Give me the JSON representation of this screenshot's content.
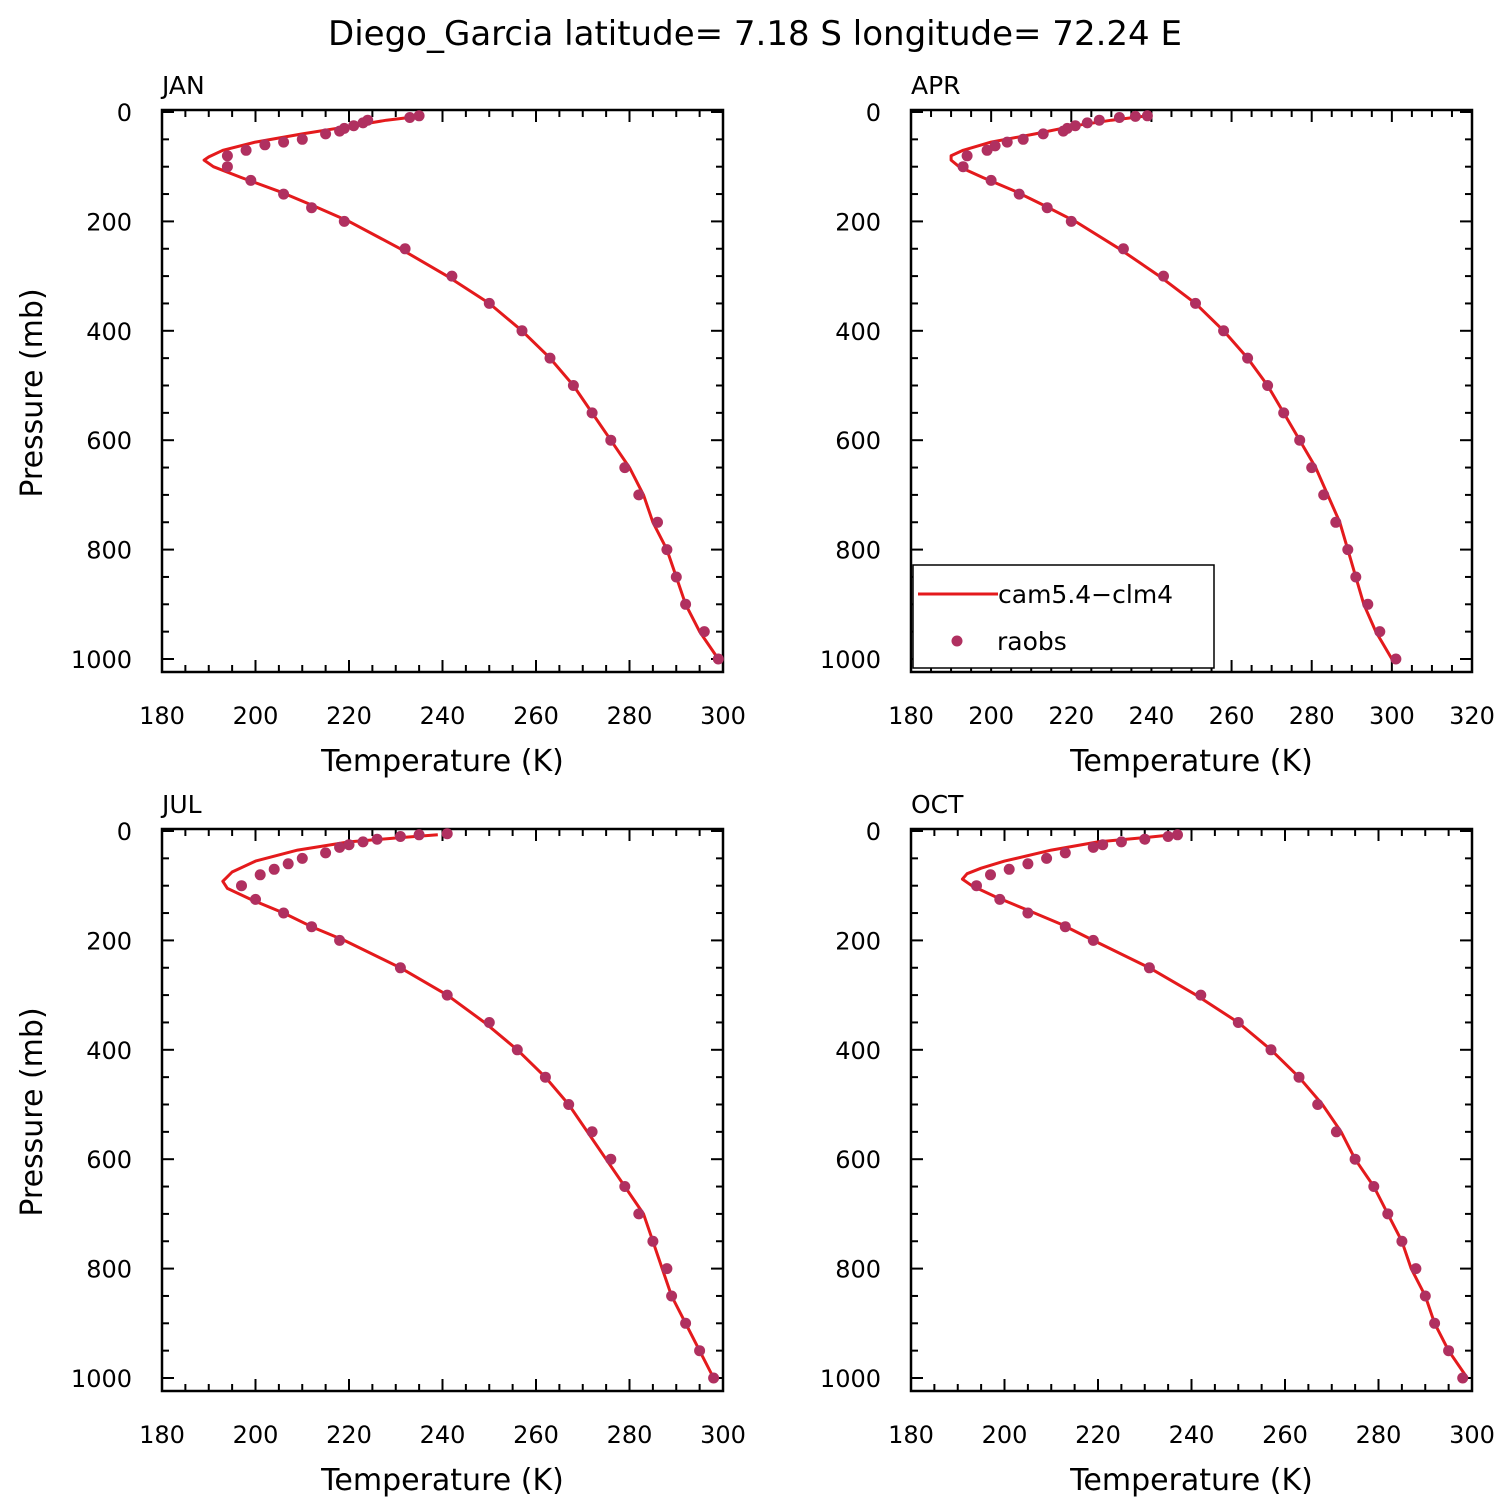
{
  "figure": {
    "title": "Diego_Garcia  latitude= 7.18 S longitude= 72.24 E"
  },
  "legend": {
    "model_label": "cam5.4−clm4",
    "obs_label": "raobs",
    "placement": "lower-left of APR panel"
  },
  "colors": {
    "model_line": "#e41a1c",
    "obs_marker": "#b03060",
    "axes": "#000000"
  },
  "chart_data": [
    {
      "type": "line",
      "panel": "JAN",
      "xlabel": "Temperature (K)",
      "ylabel": "Pressure (mb)",
      "xlim": [
        180,
        300
      ],
      "ylim": [
        0,
        1025
      ],
      "y_inverted": true,
      "xticks": [
        180,
        200,
        220,
        240,
        260,
        280,
        300
      ],
      "yticks": [
        0,
        200,
        400,
        600,
        800,
        1000
      ],
      "series": [
        {
          "name": "cam5.4−clm4",
          "kind": "line",
          "points": [
            [
              236,
              7
            ],
            [
              228,
              15
            ],
            [
              221,
              25
            ],
            [
              210,
              40
            ],
            [
              200,
              55
            ],
            [
              193,
              70
            ],
            [
              190,
              82
            ],
            [
              189,
              88
            ],
            [
              191,
              100
            ],
            [
              197,
              120
            ],
            [
              205,
              145
            ],
            [
              212,
              170
            ],
            [
              220,
              200
            ],
            [
              231,
              250
            ],
            [
              241,
              300
            ],
            [
              250,
              350
            ],
            [
              257,
              400
            ],
            [
              263,
              450
            ],
            [
              268,
              500
            ],
            [
              272,
              550
            ],
            [
              276,
              600
            ],
            [
              280,
              650
            ],
            [
              283,
              700
            ],
            [
              285,
              750
            ],
            [
              288,
              800
            ],
            [
              290,
              850
            ],
            [
              292,
              900
            ],
            [
              295,
              950
            ],
            [
              299,
              1000
            ]
          ]
        },
        {
          "name": "raobs",
          "kind": "scatter",
          "points": [
            [
              235,
              7
            ],
            [
              233,
              10
            ],
            [
              224,
              15
            ],
            [
              223,
              20
            ],
            [
              221,
              25
            ],
            [
              219,
              30
            ],
            [
              218,
              35
            ],
            [
              215,
              40
            ],
            [
              210,
              50
            ],
            [
              206,
              55
            ],
            [
              202,
              60
            ],
            [
              198,
              70
            ],
            [
              194,
              80
            ],
            [
              194,
              100
            ],
            [
              199,
              125
            ],
            [
              206,
              150
            ],
            [
              212,
              175
            ],
            [
              219,
              200
            ],
            [
              232,
              250
            ],
            [
              242,
              300
            ],
            [
              250,
              350
            ],
            [
              257,
              400
            ],
            [
              263,
              450
            ],
            [
              268,
              500
            ],
            [
              272,
              550
            ],
            [
              276,
              600
            ],
            [
              279,
              650
            ],
            [
              282,
              700
            ],
            [
              286,
              750
            ],
            [
              288,
              800
            ],
            [
              290,
              850
            ],
            [
              292,
              900
            ],
            [
              296,
              950
            ],
            [
              299,
              1000
            ]
          ]
        }
      ]
    },
    {
      "type": "line",
      "panel": "APR",
      "xlabel": "Temperature (K)",
      "ylabel": "",
      "xlim": [
        180,
        320
      ],
      "ylim": [
        0,
        1025
      ],
      "y_inverted": true,
      "xticks": [
        180,
        200,
        220,
        240,
        260,
        280,
        300,
        320
      ],
      "yticks": [
        0,
        200,
        400,
        600,
        800,
        1000
      ],
      "series": [
        {
          "name": "cam5.4−clm4",
          "kind": "line",
          "points": [
            [
              239,
              7
            ],
            [
              230,
              15
            ],
            [
              221,
              25
            ],
            [
              211,
              40
            ],
            [
              200,
              55
            ],
            [
              193,
              70
            ],
            [
              190,
              80
            ],
            [
              190,
              88
            ],
            [
              192,
              100
            ],
            [
              198,
              120
            ],
            [
              206,
              145
            ],
            [
              213,
              170
            ],
            [
              221,
              200
            ],
            [
              232,
              250
            ],
            [
              242,
              300
            ],
            [
              251,
              350
            ],
            [
              258,
              400
            ],
            [
              264,
              450
            ],
            [
              269,
              500
            ],
            [
              273,
              550
            ],
            [
              277,
              600
            ],
            [
              281,
              650
            ],
            [
              284,
              700
            ],
            [
              287,
              750
            ],
            [
              289,
              800
            ],
            [
              291,
              850
            ],
            [
              293,
              900
            ],
            [
              296,
              950
            ],
            [
              300,
              1000
            ]
          ]
        },
        {
          "name": "raobs",
          "kind": "scatter",
          "points": [
            [
              239,
              7
            ],
            [
              236,
              8
            ],
            [
              232,
              10
            ],
            [
              227,
              15
            ],
            [
              224,
              20
            ],
            [
              221,
              25
            ],
            [
              219,
              30
            ],
            [
              218,
              35
            ],
            [
              213,
              40
            ],
            [
              208,
              50
            ],
            [
              204,
              55
            ],
            [
              201,
              62
            ],
            [
              199,
              70
            ],
            [
              194,
              80
            ],
            [
              193,
              100
            ],
            [
              200,
              125
            ],
            [
              207,
              150
            ],
            [
              214,
              175
            ],
            [
              220,
              200
            ],
            [
              233,
              250
            ],
            [
              243,
              300
            ],
            [
              251,
              350
            ],
            [
              258,
              400
            ],
            [
              264,
              450
            ],
            [
              269,
              500
            ],
            [
              273,
              550
            ],
            [
              277,
              600
            ],
            [
              280,
              650
            ],
            [
              283,
              700
            ],
            [
              286,
              750
            ],
            [
              289,
              800
            ],
            [
              291,
              850
            ],
            [
              294,
              900
            ],
            [
              297,
              950
            ],
            [
              301,
              1000
            ]
          ]
        }
      ]
    },
    {
      "type": "line",
      "panel": "JUL",
      "xlabel": "Temperature (K)",
      "ylabel": "Pressure (mb)",
      "xlim": [
        180,
        300
      ],
      "ylim": [
        0,
        1025
      ],
      "y_inverted": true,
      "xticks": [
        180,
        200,
        220,
        240,
        260,
        280,
        300
      ],
      "yticks": [
        0,
        200,
        400,
        600,
        800,
        1000
      ],
      "series": [
        {
          "name": "cam5.4−clm4",
          "kind": "line",
          "points": [
            [
              239,
              7
            ],
            [
              231,
              12
            ],
            [
              220,
              20
            ],
            [
              209,
              35
            ],
            [
              200,
              55
            ],
            [
              195,
              75
            ],
            [
              193,
              92
            ],
            [
              194,
              105
            ],
            [
              199,
              125
            ],
            [
              206,
              150
            ],
            [
              212,
              175
            ],
            [
              219,
              200
            ],
            [
              231,
              250
            ],
            [
              241,
              300
            ],
            [
              249,
              350
            ],
            [
              256,
              400
            ],
            [
              262,
              450
            ],
            [
              267,
              500
            ],
            [
              271,
              550
            ],
            [
              275,
              600
            ],
            [
              279,
              650
            ],
            [
              283,
              700
            ],
            [
              285,
              750
            ],
            [
              287,
              800
            ],
            [
              289,
              850
            ],
            [
              292,
              900
            ],
            [
              295,
              950
            ],
            [
              298,
              1000
            ]
          ]
        },
        {
          "name": "raobs",
          "kind": "scatter",
          "points": [
            [
              241,
              5
            ],
            [
              235,
              7
            ],
            [
              231,
              10
            ],
            [
              226,
              15
            ],
            [
              223,
              20
            ],
            [
              220,
              25
            ],
            [
              218,
              30
            ],
            [
              215,
              40
            ],
            [
              210,
              50
            ],
            [
              207,
              60
            ],
            [
              204,
              70
            ],
            [
              201,
              80
            ],
            [
              197,
              100
            ],
            [
              200,
              125
            ],
            [
              206,
              150
            ],
            [
              212,
              175
            ],
            [
              218,
              200
            ],
            [
              231,
              250
            ],
            [
              241,
              300
            ],
            [
              250,
              350
            ],
            [
              256,
              400
            ],
            [
              262,
              450
            ],
            [
              267,
              500
            ],
            [
              272,
              550
            ],
            [
              276,
              600
            ],
            [
              279,
              650
            ],
            [
              282,
              700
            ],
            [
              285,
              750
            ],
            [
              288,
              800
            ],
            [
              289,
              850
            ],
            [
              292,
              900
            ],
            [
              295,
              950
            ],
            [
              298,
              1000
            ]
          ]
        }
      ]
    },
    {
      "type": "line",
      "panel": "OCT",
      "xlabel": "Temperature (K)",
      "ylabel": "",
      "xlim": [
        180,
        300
      ],
      "ylim": [
        0,
        1025
      ],
      "y_inverted": true,
      "xticks": [
        180,
        200,
        220,
        240,
        260,
        280,
        300
      ],
      "yticks": [
        0,
        200,
        400,
        600,
        800,
        1000
      ],
      "series": [
        {
          "name": "cam5.4−clm4",
          "kind": "line",
          "points": [
            [
              238,
              5
            ],
            [
              230,
              12
            ],
            [
              220,
              20
            ],
            [
              210,
              35
            ],
            [
              200,
              55
            ],
            [
              195,
              68
            ],
            [
              192,
              78
            ],
            [
              191,
              88
            ],
            [
              193,
              100
            ],
            [
              198,
              120
            ],
            [
              205,
              145
            ],
            [
              212,
              170
            ],
            [
              219,
              200
            ],
            [
              231,
              250
            ],
            [
              241,
              300
            ],
            [
              250,
              350
            ],
            [
              257,
              400
            ],
            [
              263,
              450
            ],
            [
              268,
              500
            ],
            [
              272,
              550
            ],
            [
              275,
              600
            ],
            [
              279,
              650
            ],
            [
              282,
              700
            ],
            [
              285,
              750
            ],
            [
              287,
              800
            ],
            [
              290,
              850
            ],
            [
              292,
              900
            ],
            [
              295,
              950
            ],
            [
              299,
              1000
            ]
          ]
        },
        {
          "name": "raobs",
          "kind": "scatter",
          "points": [
            [
              237,
              7
            ],
            [
              235,
              10
            ],
            [
              230,
              15
            ],
            [
              225,
              20
            ],
            [
              221,
              25
            ],
            [
              219,
              30
            ],
            [
              213,
              40
            ],
            [
              209,
              50
            ],
            [
              205,
              60
            ],
            [
              201,
              70
            ],
            [
              197,
              80
            ],
            [
              194,
              100
            ],
            [
              199,
              125
            ],
            [
              205,
              150
            ],
            [
              213,
              175
            ],
            [
              219,
              200
            ],
            [
              231,
              250
            ],
            [
              242,
              300
            ],
            [
              250,
              350
            ],
            [
              257,
              400
            ],
            [
              263,
              450
            ],
            [
              267,
              500
            ],
            [
              271,
              550
            ],
            [
              275,
              600
            ],
            [
              279,
              650
            ],
            [
              282,
              700
            ],
            [
              285,
              750
            ],
            [
              288,
              800
            ],
            [
              290,
              850
            ],
            [
              292,
              900
            ],
            [
              295,
              950
            ],
            [
              298,
              1000
            ]
          ]
        }
      ]
    }
  ]
}
